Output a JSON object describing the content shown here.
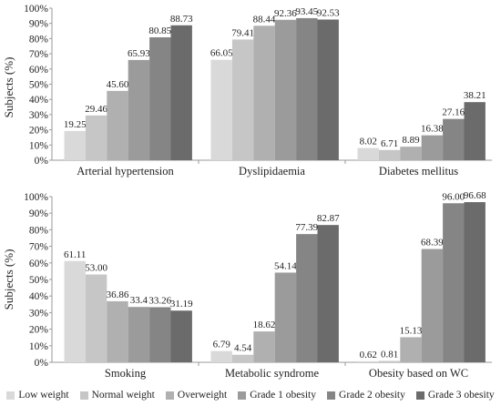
{
  "chart_data": {
    "type": "bar",
    "ylabel": "Subjects (%)",
    "y_ticks": [
      "0%",
      "10%",
      "20%",
      "30%",
      "40%",
      "50%",
      "60%",
      "70%",
      "80%",
      "90%",
      "100%"
    ],
    "ylim": [
      0,
      100
    ],
    "grid": false,
    "legend_position": "bottom",
    "series": [
      {
        "name": "Low weight",
        "color": "#d9d9d9"
      },
      {
        "name": "Normal weight",
        "color": "#c6c6c6"
      },
      {
        "name": "Overweight",
        "color": "#b0b0b0"
      },
      {
        "name": "Grade 1 obesity",
        "color": "#9b9b9b"
      },
      {
        "name": "Grade 2 obesity",
        "color": "#858585"
      },
      {
        "name": "Grade 3 obesity",
        "color": "#6b6b6b"
      }
    ],
    "panels": [
      {
        "row": 0,
        "categories": [
          {
            "label": "Arterial hypertension",
            "values": [
              19.25,
              29.46,
              45.6,
              65.93,
              80.85,
              88.73
            ],
            "labels": [
              "19.25",
              "29.46",
              "45.60",
              "65.93",
              "80.85",
              "88.73"
            ]
          },
          {
            "label": "Dyslipidaemia",
            "values": [
              66.05,
              79.41,
              88.44,
              92.36,
              93.45,
              92.53
            ],
            "labels": [
              "66.05",
              "79.41",
              "88.44",
              "92.36",
              "93.45",
              "92.53"
            ]
          },
          {
            "label": "Diabetes mellitus",
            "values": [
              8.02,
              6.71,
              8.89,
              16.38,
              27.16,
              38.21
            ],
            "labels": [
              "8.02",
              "6.71",
              "8.89",
              "16.38",
              "27.16",
              "38.21"
            ]
          }
        ]
      },
      {
        "row": 1,
        "categories": [
          {
            "label": "Smoking",
            "values": [
              61.11,
              53.0,
              36.86,
              33.4,
              33.26,
              31.19
            ],
            "labels": [
              "61.11",
              "53.00",
              "36.86",
              "33.4",
              "33.26",
              "31.19"
            ]
          },
          {
            "label": "Metabolic syndrome",
            "values": [
              6.79,
              4.54,
              18.62,
              54.14,
              77.39,
              82.87
            ],
            "labels": [
              "6.79",
              "4.54",
              "18.62",
              "54.14",
              "77.39",
              "82.87"
            ]
          },
          {
            "label": "Obesity based on WC",
            "values": [
              0.62,
              0.81,
              15.13,
              68.39,
              96.0,
              96.68
            ],
            "labels": [
              "0.62",
              "0.81",
              "15.13",
              "68.39",
              "96.00",
              "96.68"
            ]
          }
        ]
      }
    ]
  }
}
